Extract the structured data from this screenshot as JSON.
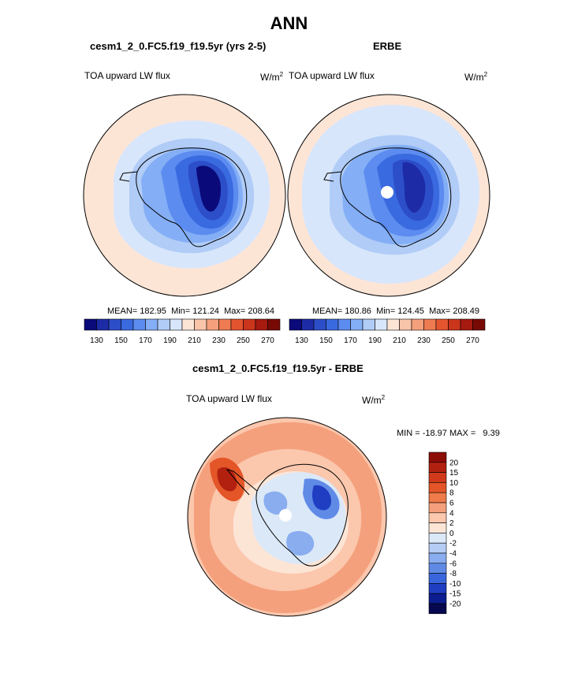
{
  "page_title": "ANN",
  "chart_data": [
    {
      "type": "heatmap",
      "projection": "south-polar-stereographic",
      "title": "cesm1_2_0.FC5.f19_f19.5yr (yrs 2-5)",
      "left_label": "TOA upward LW flux",
      "units": "W/m",
      "units_exp": "2",
      "stats": {
        "mean_label": "MEAN=",
        "mean": "182.95",
        "min_label": "Min=",
        "min": "121.24",
        "max_label": "Max=",
        "max": "208.64"
      },
      "colorbar_ticks": [
        "130",
        "150",
        "170",
        "190",
        "210",
        "230",
        "250",
        "270"
      ],
      "contour_levels_w_m2": [
        125,
        135,
        145,
        155,
        165,
        175,
        185,
        195,
        205,
        215
      ]
    },
    {
      "type": "heatmap",
      "projection": "south-polar-stereographic",
      "title": "ERBE",
      "left_label": "TOA upward LW flux",
      "units": "W/m",
      "units_exp": "2",
      "stats": {
        "mean_label": "MEAN=",
        "mean": "180.86",
        "min_label": "Min=",
        "min": "124.45",
        "max_label": "Max=",
        "max": "208.49"
      },
      "colorbar_ticks": [
        "130",
        "150",
        "170",
        "190",
        "210",
        "230",
        "250",
        "270"
      ]
    },
    {
      "type": "heatmap",
      "projection": "south-polar-stereographic",
      "title": "cesm1_2_0.FC5.f19_f19.5yr - ERBE",
      "left_label": "TOA upward LW flux",
      "units": "W/m",
      "units_exp": "2",
      "range_label": "MIN = -18.97 MAX =   9.39",
      "stats": {
        "min": "-18.97",
        "max": "9.39"
      },
      "colorbar_ticks": [
        "20",
        "15",
        "10",
        "8",
        "6",
        "4",
        "2",
        "0",
        "-2",
        "-4",
        "-6",
        "-8",
        "-10",
        "-15",
        "-20"
      ]
    }
  ],
  "colormaps": {
    "absolute": [
      "#0a0a7a",
      "#1d2ca6",
      "#2d4ec9",
      "#3a6ae0",
      "#5c8cef",
      "#84aef5",
      "#b0ccf7",
      "#d8e6fb",
      "#fde5d6",
      "#f8c5aa",
      "#f5a07c",
      "#ef7b52",
      "#e4552f",
      "#cb351c",
      "#a61a10",
      "#780a06"
    ],
    "difference": [
      "#8c0d06",
      "#b2210f",
      "#d03a1b",
      "#e45528",
      "#ef7a4a",
      "#f5a07c",
      "#fbc7ad",
      "#fde5d6",
      "#dbe8f8",
      "#b5cdf4",
      "#89adef",
      "#5f8be7",
      "#3a66dd",
      "#1f3ec2",
      "#0c1d8f",
      "#06084f"
    ]
  }
}
